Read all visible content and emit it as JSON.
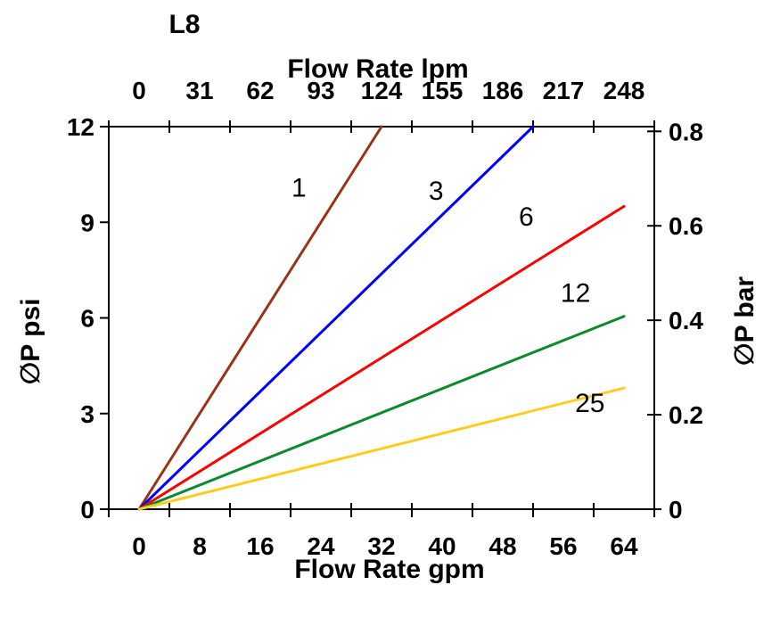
{
  "chart_data": {
    "type": "line",
    "title": "L8",
    "grid": false,
    "legend": "inline-labels",
    "background": "#ffffff",
    "axis_color": "#000000",
    "x_top": {
      "label": "Flow Rate lpm",
      "tick_values": [
        0,
        31,
        62,
        93,
        124,
        155,
        186,
        217,
        248
      ],
      "tick_labels": [
        "0",
        "31",
        "62",
        "93",
        "124",
        "155",
        "186",
        "217",
        "248"
      ]
    },
    "x_bottom": {
      "label": "Flow Rate gpm",
      "tick_values": [
        0,
        8,
        16,
        24,
        32,
        40,
        48,
        56,
        64
      ],
      "tick_labels": [
        "0",
        "8",
        "16",
        "24",
        "32",
        "40",
        "48",
        "56",
        "64"
      ],
      "range": [
        0,
        64
      ]
    },
    "y_left": {
      "label": "∅P psi",
      "tick_values": [
        0,
        3,
        6,
        9,
        12
      ],
      "tick_labels": [
        "0",
        "3",
        "6",
        "9",
        "12"
      ],
      "range": [
        0,
        12
      ]
    },
    "y_right": {
      "label": "∅P bar",
      "tick_values": [
        0,
        0.2,
        0.4,
        0.6,
        0.8
      ],
      "tick_labels": [
        "0",
        "0.2",
        "0.4",
        "0.6",
        "0.8"
      ],
      "range": [
        0,
        0.81
      ]
    },
    "series": [
      {
        "name": "1",
        "color": "#993316",
        "points": [
          [
            0,
            0
          ],
          [
            32,
            12
          ]
        ],
        "label_at": [
          21.1,
          9.8
        ]
      },
      {
        "name": "3",
        "color": "#0000FF",
        "points": [
          [
            0,
            0
          ],
          [
            52,
            12
          ]
        ],
        "label_at": [
          39.2,
          9.7
        ]
      },
      {
        "name": "6",
        "color": "#FF0000",
        "points": [
          [
            0,
            0
          ],
          [
            64,
            9.5
          ]
        ],
        "label_at": [
          51.1,
          8.9
        ]
      },
      {
        "name": "12",
        "color": "#0A8A2A",
        "points": [
          [
            0,
            0
          ],
          [
            64,
            6.05
          ]
        ],
        "label_at": [
          57.6,
          6.5
        ]
      },
      {
        "name": "25",
        "color": "#FFCC22",
        "points": [
          [
            0,
            0
          ],
          [
            64,
            3.8
          ]
        ],
        "label_at": [
          59.5,
          3.05
        ]
      }
    ]
  }
}
